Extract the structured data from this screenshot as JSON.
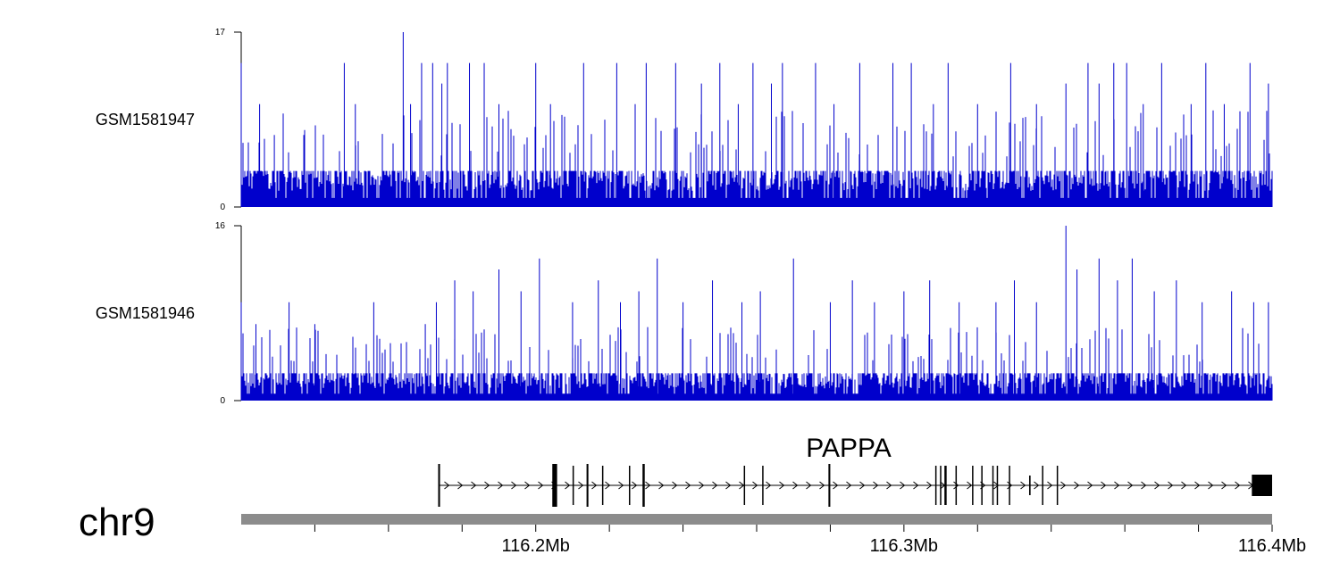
{
  "chart_data": {
    "type": "genome-browser",
    "chromosome": "chr9",
    "colors": {
      "signal": "#0000cc",
      "axis": "#000000",
      "ideogram": "#8c8c8c"
    },
    "region": {
      "start_mb": 116.12,
      "end_mb": 116.4
    },
    "tracks": [
      {
        "name": "GSM1581947",
        "ymin": 0,
        "ymax": 17,
        "ymin_label": "0",
        "ymax_label": "17",
        "baseline_max": 3.5,
        "peaks": [
          {
            "pos": 116.12,
            "v": 14
          },
          {
            "pos": 116.125,
            "v": 10
          },
          {
            "pos": 116.129,
            "v": 7
          },
          {
            "pos": 116.137,
            "v": 7
          },
          {
            "pos": 116.148,
            "v": 14
          },
          {
            "pos": 116.151,
            "v": 10
          },
          {
            "pos": 116.164,
            "v": 17
          },
          {
            "pos": 116.166,
            "v": 10
          },
          {
            "pos": 116.169,
            "v": 14
          },
          {
            "pos": 116.172,
            "v": 14
          },
          {
            "pos": 116.1745,
            "v": 12
          },
          {
            "pos": 116.176,
            "v": 14
          },
          {
            "pos": 116.182,
            "v": 14
          },
          {
            "pos": 116.186,
            "v": 14
          },
          {
            "pos": 116.19,
            "v": 10
          },
          {
            "pos": 116.2,
            "v": 14
          },
          {
            "pos": 116.204,
            "v": 10
          },
          {
            "pos": 116.213,
            "v": 14
          },
          {
            "pos": 116.222,
            "v": 14
          },
          {
            "pos": 116.227,
            "v": 10
          },
          {
            "pos": 116.23,
            "v": 14
          },
          {
            "pos": 116.238,
            "v": 14
          },
          {
            "pos": 116.245,
            "v": 12
          },
          {
            "pos": 116.25,
            "v": 14
          },
          {
            "pos": 116.255,
            "v": 10
          },
          {
            "pos": 116.259,
            "v": 14
          },
          {
            "pos": 116.264,
            "v": 12
          },
          {
            "pos": 116.267,
            "v": 14
          },
          {
            "pos": 116.276,
            "v": 14
          },
          {
            "pos": 116.281,
            "v": 10
          },
          {
            "pos": 116.288,
            "v": 14
          },
          {
            "pos": 116.297,
            "v": 14
          },
          {
            "pos": 116.302,
            "v": 14
          },
          {
            "pos": 116.308,
            "v": 10
          },
          {
            "pos": 116.312,
            "v": 14
          },
          {
            "pos": 116.32,
            "v": 10
          },
          {
            "pos": 116.329,
            "v": 14
          },
          {
            "pos": 116.336,
            "v": 10
          },
          {
            "pos": 116.344,
            "v": 12
          },
          {
            "pos": 116.35,
            "v": 14
          },
          {
            "pos": 116.353,
            "v": 12
          },
          {
            "pos": 116.357,
            "v": 14
          },
          {
            "pos": 116.3605,
            "v": 14
          },
          {
            "pos": 116.365,
            "v": 10
          },
          {
            "pos": 116.37,
            "v": 14
          },
          {
            "pos": 116.378,
            "v": 10
          },
          {
            "pos": 116.382,
            "v": 14
          },
          {
            "pos": 116.387,
            "v": 10
          },
          {
            "pos": 116.394,
            "v": 14
          },
          {
            "pos": 116.399,
            "v": 12
          }
        ]
      },
      {
        "name": "GSM1581946",
        "ymin": 0,
        "ymax": 16,
        "ymin_label": "0",
        "ymax_label": "16",
        "baseline_max": 2.5,
        "peaks": [
          {
            "pos": 116.12,
            "v": 9
          },
          {
            "pos": 116.124,
            "v": 7
          },
          {
            "pos": 116.133,
            "v": 9
          },
          {
            "pos": 116.14,
            "v": 7
          },
          {
            "pos": 116.156,
            "v": 9
          },
          {
            "pos": 116.17,
            "v": 7
          },
          {
            "pos": 116.173,
            "v": 9
          },
          {
            "pos": 116.178,
            "v": 11
          },
          {
            "pos": 116.183,
            "v": 10
          },
          {
            "pos": 116.19,
            "v": 12
          },
          {
            "pos": 116.196,
            "v": 10
          },
          {
            "pos": 116.201,
            "v": 13
          },
          {
            "pos": 116.21,
            "v": 9
          },
          {
            "pos": 116.217,
            "v": 11
          },
          {
            "pos": 116.223,
            "v": 9
          },
          {
            "pos": 116.228,
            "v": 10
          },
          {
            "pos": 116.233,
            "v": 13
          },
          {
            "pos": 116.24,
            "v": 9
          },
          {
            "pos": 116.248,
            "v": 11
          },
          {
            "pos": 116.256,
            "v": 9
          },
          {
            "pos": 116.261,
            "v": 10
          },
          {
            "pos": 116.27,
            "v": 13
          },
          {
            "pos": 116.28,
            "v": 9
          },
          {
            "pos": 116.286,
            "v": 11
          },
          {
            "pos": 116.292,
            "v": 9
          },
          {
            "pos": 116.3,
            "v": 10
          },
          {
            "pos": 116.307,
            "v": 11
          },
          {
            "pos": 116.315,
            "v": 9
          },
          {
            "pos": 116.325,
            "v": 9
          },
          {
            "pos": 116.33,
            "v": 11
          },
          {
            "pos": 116.336,
            "v": 9
          },
          {
            "pos": 116.344,
            "v": 16
          },
          {
            "pos": 116.347,
            "v": 12
          },
          {
            "pos": 116.353,
            "v": 13
          },
          {
            "pos": 116.358,
            "v": 11
          },
          {
            "pos": 116.362,
            "v": 13
          },
          {
            "pos": 116.368,
            "v": 10
          },
          {
            "pos": 116.374,
            "v": 11
          },
          {
            "pos": 116.381,
            "v": 9
          },
          {
            "pos": 116.389,
            "v": 10
          },
          {
            "pos": 116.395,
            "v": 9
          },
          {
            "pos": 116.399,
            "v": 9
          }
        ]
      }
    ],
    "gene": {
      "name": "PAPPA",
      "start": 116.1735,
      "end": 116.4,
      "strand": "+",
      "exons": [
        {
          "start": 116.1735,
          "end": 116.174,
          "tall": true
        },
        {
          "start": 116.2045,
          "end": 116.2058,
          "tall": true
        },
        {
          "start": 116.21,
          "end": 116.2103,
          "tall": false
        },
        {
          "start": 116.2138,
          "end": 116.2143,
          "tall": true
        },
        {
          "start": 116.218,
          "end": 116.2183,
          "tall": false
        },
        {
          "start": 116.2253,
          "end": 116.2256,
          "tall": false
        },
        {
          "start": 116.229,
          "end": 116.2296,
          "tall": true
        },
        {
          "start": 116.2565,
          "end": 116.2568,
          "tall": false
        },
        {
          "start": 116.2615,
          "end": 116.2618,
          "tall": false
        },
        {
          "start": 116.2795,
          "end": 116.28,
          "tall": true
        },
        {
          "start": 116.3085,
          "end": 116.3088,
          "tall": false
        },
        {
          "start": 116.3098,
          "end": 116.3101,
          "tall": false
        },
        {
          "start": 116.311,
          "end": 116.3116,
          "tall": false
        },
        {
          "start": 116.314,
          "end": 116.3143,
          "tall": false
        },
        {
          "start": 116.3185,
          "end": 116.3188,
          "tall": false
        },
        {
          "start": 116.321,
          "end": 116.3213,
          "tall": false
        },
        {
          "start": 116.324,
          "end": 116.3243,
          "tall": false
        },
        {
          "start": 116.3252,
          "end": 116.3255,
          "tall": false
        },
        {
          "start": 116.3285,
          "end": 116.3288,
          "tall": false
        },
        {
          "start": 116.334,
          "end": 116.3344,
          "tall": false,
          "short": true
        },
        {
          "start": 116.3375,
          "end": 116.3378,
          "tall": false
        },
        {
          "start": 116.3415,
          "end": 116.3418,
          "tall": false
        },
        {
          "start": 116.3945,
          "end": 116.4,
          "tall": true,
          "thick": true
        }
      ]
    },
    "axis": {
      "ticks": [
        116.14,
        116.16,
        116.18,
        116.2,
        116.22,
        116.24,
        116.26,
        116.28,
        116.3,
        116.32,
        116.34,
        116.36,
        116.38,
        116.4
      ],
      "labels": [
        {
          "pos": 116.2,
          "text": "116.2Mb"
        },
        {
          "pos": 116.3,
          "text": "116.3Mb"
        },
        {
          "pos": 116.4,
          "text": "116.4Mb"
        }
      ]
    }
  }
}
